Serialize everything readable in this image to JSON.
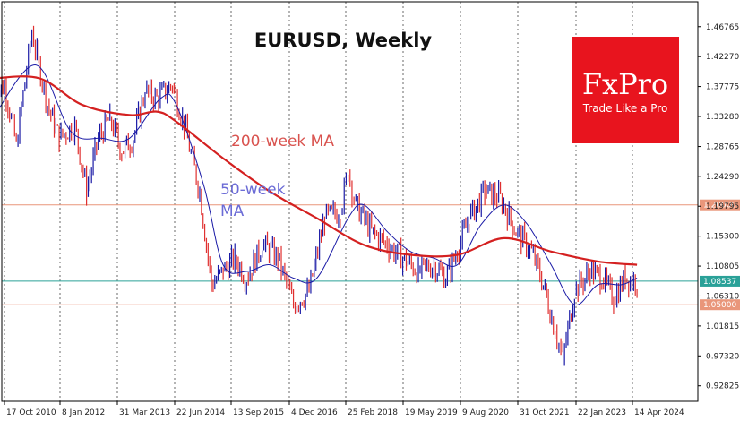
{
  "chart_data": {
    "type": "line",
    "title": "EURUSD, Weekly",
    "xlabel": "",
    "ylabel": "",
    "ylim": [
      0.905,
      1.505
    ],
    "y_ticks": [
      "1.46765",
      "1.42270",
      "1.37775",
      "1.33280",
      "1.28765",
      "1.24290",
      "1.19795",
      "1.15300",
      "1.10805",
      "1.06310",
      "1.01815",
      "0.97320",
      "0.92825"
    ],
    "x_ticks": [
      "17 Oct 2010",
      "8 Jan 2012",
      "31 Mar 2013",
      "22 Jun 2014",
      "13 Sep 2015",
      "4 Dec 2016",
      "25 Feb 2018",
      "19 May 2019",
      "9 Aug 2020",
      "31 Oct 2021",
      "22 Jan 2023",
      "14 Apr 2024"
    ],
    "grid": "vertical-dotted",
    "price_lines": [
      {
        "label": "1.20000",
        "value": 1.2,
        "color": "#e9967a"
      },
      {
        "label": "1.08537",
        "value": 1.08537,
        "color": "#2aa198"
      },
      {
        "label": "1.05000",
        "value": 1.05,
        "color": "#e9967a"
      }
    ],
    "annotations": [
      {
        "text": "200-week MA",
        "color": "#d9534f"
      },
      {
        "text": "50-week",
        "color": "#6b6bd6"
      },
      {
        "text": "MA",
        "color": "#6b6bd6"
      }
    ],
    "series": [
      {
        "name": "EURUSD",
        "color": "#1a1aa6",
        "down_color": "#e03030",
        "x": [
          "2010-07",
          "2010-10",
          "2011-01",
          "2011-05",
          "2011-09",
          "2011-12",
          "2012-04",
          "2012-07",
          "2012-10",
          "2013-01",
          "2013-04",
          "2013-07",
          "2013-10",
          "2014-01",
          "2014-05",
          "2014-08",
          "2014-12",
          "2015-03",
          "2015-06",
          "2015-09",
          "2015-12",
          "2016-04",
          "2016-08",
          "2016-12",
          "2017-04",
          "2017-08",
          "2017-12",
          "2018-02",
          "2018-04",
          "2018-08",
          "2018-12",
          "2019-04",
          "2019-08",
          "2019-12",
          "2020-03",
          "2020-06",
          "2020-09",
          "2021-01",
          "2021-05",
          "2021-09",
          "2022-01",
          "2022-04",
          "2022-07",
          "2022-09",
          "2022-12",
          "2023-04",
          "2023-07",
          "2023-10",
          "2024-01",
          "2024-04"
        ],
        "values": [
          1.36,
          1.38,
          1.29,
          1.46,
          1.35,
          1.3,
          1.32,
          1.22,
          1.3,
          1.33,
          1.28,
          1.3,
          1.37,
          1.36,
          1.38,
          1.32,
          1.22,
          1.08,
          1.1,
          1.12,
          1.09,
          1.14,
          1.12,
          1.05,
          1.07,
          1.18,
          1.19,
          1.25,
          1.2,
          1.16,
          1.14,
          1.12,
          1.1,
          1.11,
          1.09,
          1.13,
          1.18,
          1.22,
          1.21,
          1.16,
          1.13,
          1.08,
          1.01,
          0.97,
          1.07,
          1.1,
          1.09,
          1.06,
          1.09,
          1.08537
        ]
      },
      {
        "name": "50-week MA",
        "color": "#1a1aa6",
        "x": [
          "2010-07",
          "2011-06",
          "2012-03",
          "2012-11",
          "2013-06",
          "2014-02",
          "2014-06",
          "2015-01",
          "2015-06",
          "2015-12",
          "2016-06",
          "2016-12",
          "2017-06",
          "2018-02",
          "2018-06",
          "2018-12",
          "2019-06",
          "2019-12",
          "2020-06",
          "2020-12",
          "2021-06",
          "2021-12",
          "2022-06",
          "2022-12",
          "2023-06",
          "2023-12",
          "2024-04"
        ],
        "values": [
          1.33,
          1.41,
          1.31,
          1.3,
          1.3,
          1.36,
          1.35,
          1.23,
          1.11,
          1.1,
          1.11,
          1.09,
          1.09,
          1.18,
          1.2,
          1.16,
          1.13,
          1.12,
          1.11,
          1.17,
          1.2,
          1.17,
          1.11,
          1.05,
          1.08,
          1.08,
          1.09
        ]
      },
      {
        "name": "200-week MA",
        "color": "#d42020",
        "x": [
          "2010-07",
          "2011-07",
          "2012-06",
          "2013-06",
          "2014-01",
          "2014-06",
          "2015-06",
          "2016-06",
          "2017-06",
          "2018-06",
          "2019-06",
          "2020-06",
          "2021-06",
          "2022-06",
          "2023-06",
          "2024-04"
        ],
        "values": [
          1.39,
          1.39,
          1.35,
          1.335,
          1.34,
          1.325,
          1.27,
          1.22,
          1.18,
          1.14,
          1.125,
          1.125,
          1.15,
          1.13,
          1.115,
          1.11
        ]
      }
    ]
  },
  "logo": {
    "brand": "FxPro",
    "tagline": "Trade Like a Pro",
    "background": "#e8141e"
  }
}
